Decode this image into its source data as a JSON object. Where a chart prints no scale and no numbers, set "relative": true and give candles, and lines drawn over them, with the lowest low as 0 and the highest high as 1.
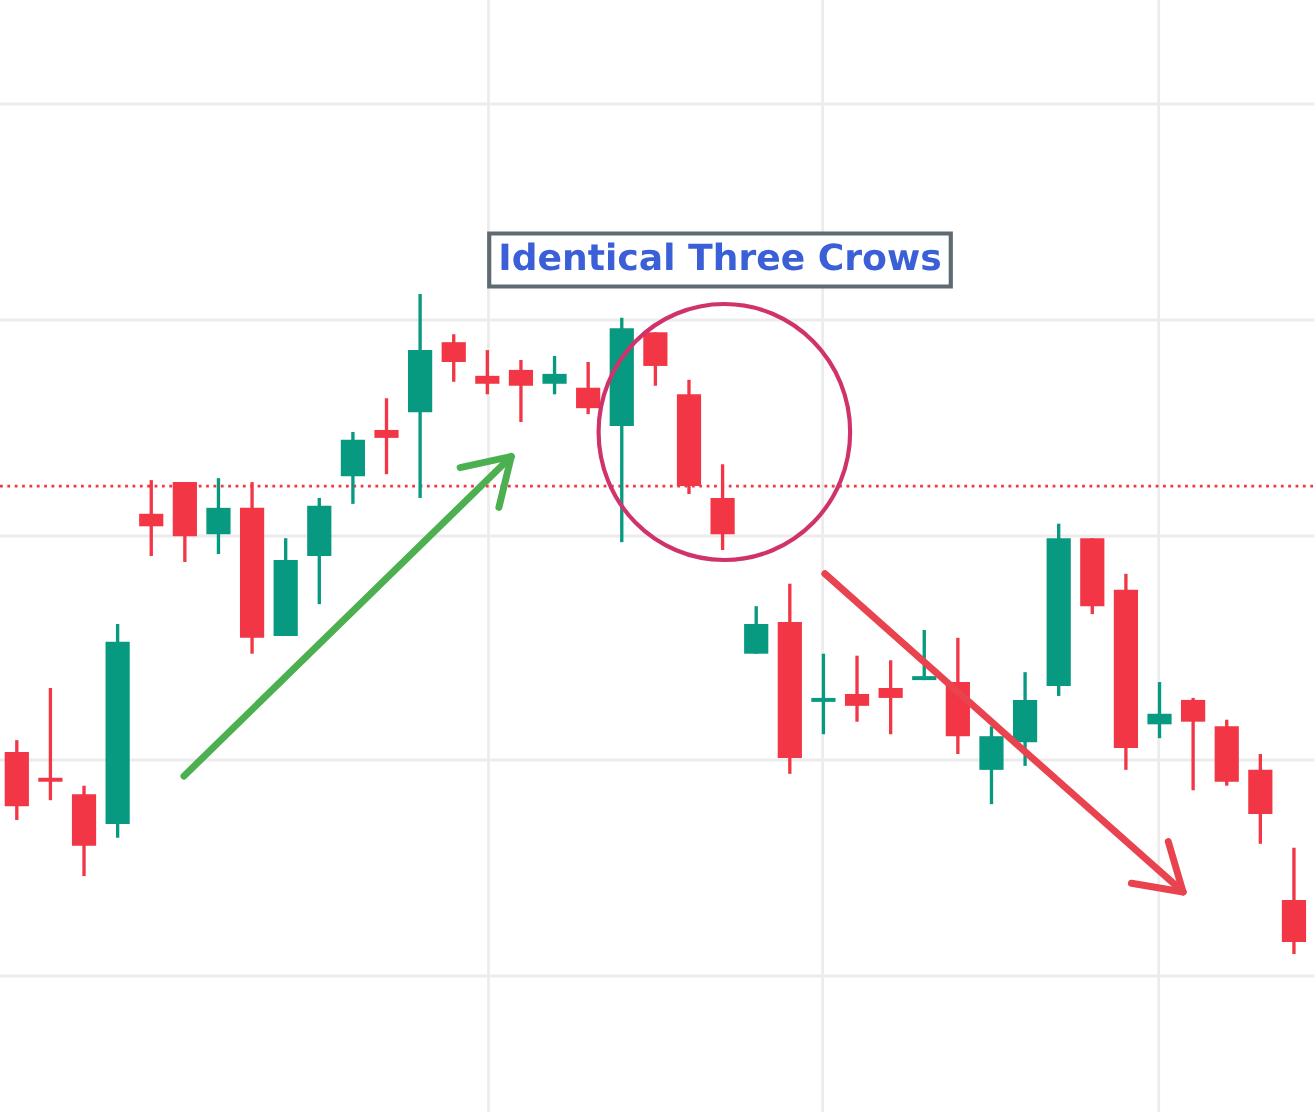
{
  "chart_data": {
    "type": "candlestick",
    "relative": true,
    "grid": true,
    "annotations": [
      "Identical Three Crows"
    ],
    "categories": [
      null,
      null,
      null,
      null,
      null,
      null,
      null,
      null,
      null,
      null,
      null,
      null,
      null,
      null,
      null,
      null,
      null,
      null,
      null,
      null,
      null,
      null,
      null,
      null,
      null,
      null,
      null,
      null,
      null,
      null,
      null,
      null,
      null,
      null,
      null,
      null,
      null,
      null,
      null
    ],
    "colors": [
      "#f23645",
      "#f23645",
      "#f23645",
      "#089981",
      "#f23645",
      "#f23645",
      "#089981",
      "#f23645",
      "#089981",
      "#089981",
      "#089981",
      "#f23645",
      "#089981",
      "#f23645",
      "#f23645",
      "#f23645",
      "#089981",
      "#f23645",
      "#089981",
      "#f23645",
      "#f23645",
      "#f23645",
      "#089981",
      "#f23645",
      "#089981",
      "#f23645",
      "#f23645",
      "#089981",
      "#f23645",
      "#089981",
      "#089981",
      "#089981",
      "#f23645",
      "#f23645",
      "#089981",
      "#f23645",
      "#f23645",
      "#f23645",
      "#f23645"
    ],
    "ref_lines": [
      {
        "axis": "y",
        "value": 0.709,
        "label": null,
        "color": "#f23645",
        "line_style": "dotted"
      }
    ],
    "ohlc": [
      [
        0.306,
        0.324,
        0.203,
        0.224
      ],
      [
        0.267,
        0.403,
        0.233,
        0.261
      ],
      [
        0.242,
        0.255,
        0.118,
        0.164
      ],
      [
        0.197,
        0.5,
        0.176,
        0.473
      ],
      [
        0.667,
        0.718,
        0.603,
        0.648
      ],
      [
        0.715,
        0.715,
        0.594,
        0.633
      ],
      [
        0.636,
        0.721,
        0.606,
        0.676
      ],
      [
        0.676,
        0.715,
        0.455,
        0.479
      ],
      [
        0.482,
        0.63,
        0.482,
        0.597
      ],
      [
        0.603,
        0.691,
        0.53,
        0.679
      ],
      [
        0.724,
        0.791,
        0.682,
        0.779
      ],
      [
        0.794,
        0.842,
        0.727,
        0.782
      ],
      [
        0.821,
        1,
        0.691,
        0.915
      ],
      [
        0.927,
        0.939,
        0.867,
        0.897
      ],
      [
        0.876,
        0.915,
        0.848,
        0.864
      ],
      [
        0.885,
        0.9,
        0.806,
        0.861
      ],
      [
        0.864,
        0.906,
        0.848,
        0.879
      ],
      [
        0.858,
        0.897,
        0.818,
        0.827
      ],
      [
        0.8,
        0.964,
        0.624,
        0.948
      ],
      [
        0.942,
        0.942,
        0.861,
        0.891
      ],
      [
        0.848,
        0.87,
        0.697,
        0.709
      ],
      [
        0.691,
        0.742,
        0.612,
        0.636
      ],
      [
        0.455,
        0.527,
        0.455,
        0.5
      ],
      [
        0.503,
        0.561,
        0.273,
        0.297
      ],
      [
        0.382,
        0.455,
        0.333,
        0.388
      ],
      [
        0.394,
        0.452,
        0.352,
        0.376
      ],
      [
        0.403,
        0.445,
        0.333,
        0.388
      ],
      [
        0.415,
        0.491,
        0.415,
        0.421
      ],
      [
        0.412,
        0.479,
        0.303,
        0.33
      ],
      [
        0.279,
        0.345,
        0.227,
        0.33
      ],
      [
        0.321,
        0.427,
        0.285,
        0.385
      ],
      [
        0.406,
        0.652,
        0.391,
        0.63
      ],
      [
        0.63,
        0.63,
        0.515,
        0.527
      ],
      [
        0.552,
        0.576,
        0.279,
        0.312
      ],
      [
        0.348,
        0.412,
        0.327,
        0.364
      ],
      [
        0.385,
        0.388,
        0.248,
        0.352
      ],
      [
        0.345,
        0.355,
        0.255,
        0.261
      ],
      [
        0.279,
        0.303,
        0.167,
        0.212
      ],
      [
        0.082,
        0.161,
        0,
        0.018
      ]
    ]
  }
}
